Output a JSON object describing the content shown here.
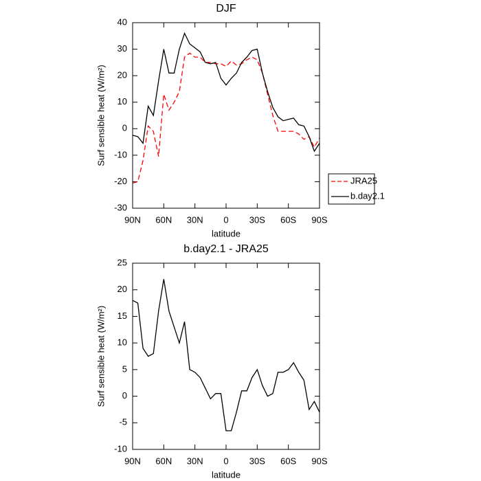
{
  "chart_data": [
    {
      "type": "line",
      "title": "DJF",
      "x_label": "latitude",
      "y_label": "Surf sensible heat (W/m²)",
      "x": [
        90,
        85,
        80,
        75,
        70,
        65,
        60,
        55,
        50,
        45,
        40,
        35,
        30,
        25,
        20,
        15,
        10,
        5,
        0,
        -5,
        -10,
        -15,
        -20,
        -25,
        -30,
        -35,
        -40,
        -45,
        -50,
        -55,
        -60,
        -65,
        -70,
        -75,
        -80,
        -85,
        -90
      ],
      "series": [
        {
          "name": "JRA25",
          "color": "#ff0000",
          "line_style": "dashed",
          "values": [
            -20.5,
            -20,
            -12,
            1,
            -1,
            -10.5,
            13,
            7,
            10,
            14,
            27,
            28.5,
            27,
            27,
            25,
            25,
            24.5,
            24.5,
            23.5,
            25.5,
            24,
            24.5,
            26,
            27,
            26,
            21,
            13,
            5,
            -1,
            -1,
            -1,
            -1,
            -2,
            -4,
            -3,
            -7,
            -3.5
          ]
        },
        {
          "name": "b.day2.1",
          "color": "#000000",
          "line_style": "solid",
          "values": [
            -2.5,
            -3,
            -5.5,
            8.5,
            5,
            18,
            30,
            21,
            21,
            30,
            36,
            32,
            30.5,
            29,
            25,
            24.5,
            25,
            19,
            16.5,
            19,
            21,
            25,
            27,
            29.5,
            30,
            21,
            14,
            8,
            4.5,
            3,
            3.5,
            4,
            1.5,
            1,
            -3,
            -8.5,
            -5.5
          ]
        }
      ],
      "xlim": [
        90,
        -90
      ],
      "xticks": [
        {
          "value": 90,
          "label": "90N"
        },
        {
          "value": 60,
          "label": "60N"
        },
        {
          "value": 30,
          "label": "30N"
        },
        0,
        {
          "value": -30,
          "label": "30S"
        },
        {
          "value": -60,
          "label": "60S"
        },
        {
          "value": -90,
          "label": "90S"
        }
      ],
      "ylim": [
        -30,
        40
      ],
      "yticks": [
        -30,
        -20,
        -10,
        0,
        10,
        20,
        30,
        40
      ],
      "legend": "right"
    },
    {
      "type": "line",
      "title": "b.day2.1 - JRA25",
      "x_label": "latitude",
      "y_label": "Surf sensible heat (W/m²)",
      "x": [
        90,
        85,
        80,
        75,
        70,
        65,
        60,
        55,
        50,
        45,
        40,
        35,
        30,
        25,
        20,
        15,
        10,
        5,
        0,
        -5,
        -10,
        -15,
        -20,
        -25,
        -30,
        -35,
        -40,
        -45,
        -50,
        -55,
        -60,
        -65,
        -70,
        -75,
        -80,
        -85,
        -90
      ],
      "values": [
        18,
        17.5,
        9,
        7.5,
        8,
        16,
        22,
        16,
        13,
        10,
        14,
        5,
        4.5,
        3.5,
        1.5,
        -0.5,
        0.5,
        0.5,
        -6.5,
        -6.5,
        -3,
        1,
        1,
        3.5,
        5,
        2,
        0,
        0.5,
        4.5,
        4.5,
        5,
        6.3,
        4.5,
        3,
        -2.5,
        -1,
        -3
      ],
      "color": "#000000",
      "xlim": [
        90,
        -90
      ],
      "xticks": [
        {
          "value": 90,
          "label": "90N"
        },
        {
          "value": 60,
          "label": "60N"
        },
        {
          "value": 30,
          "label": "30N"
        },
        0,
        {
          "value": -30,
          "label": "30S"
        },
        {
          "value": -60,
          "label": "60S"
        },
        {
          "value": -90,
          "label": "90S"
        }
      ],
      "ylim": [
        -10,
        25
      ],
      "yticks": [
        -10,
        -5,
        0,
        5,
        10,
        15,
        20,
        25
      ]
    }
  ]
}
